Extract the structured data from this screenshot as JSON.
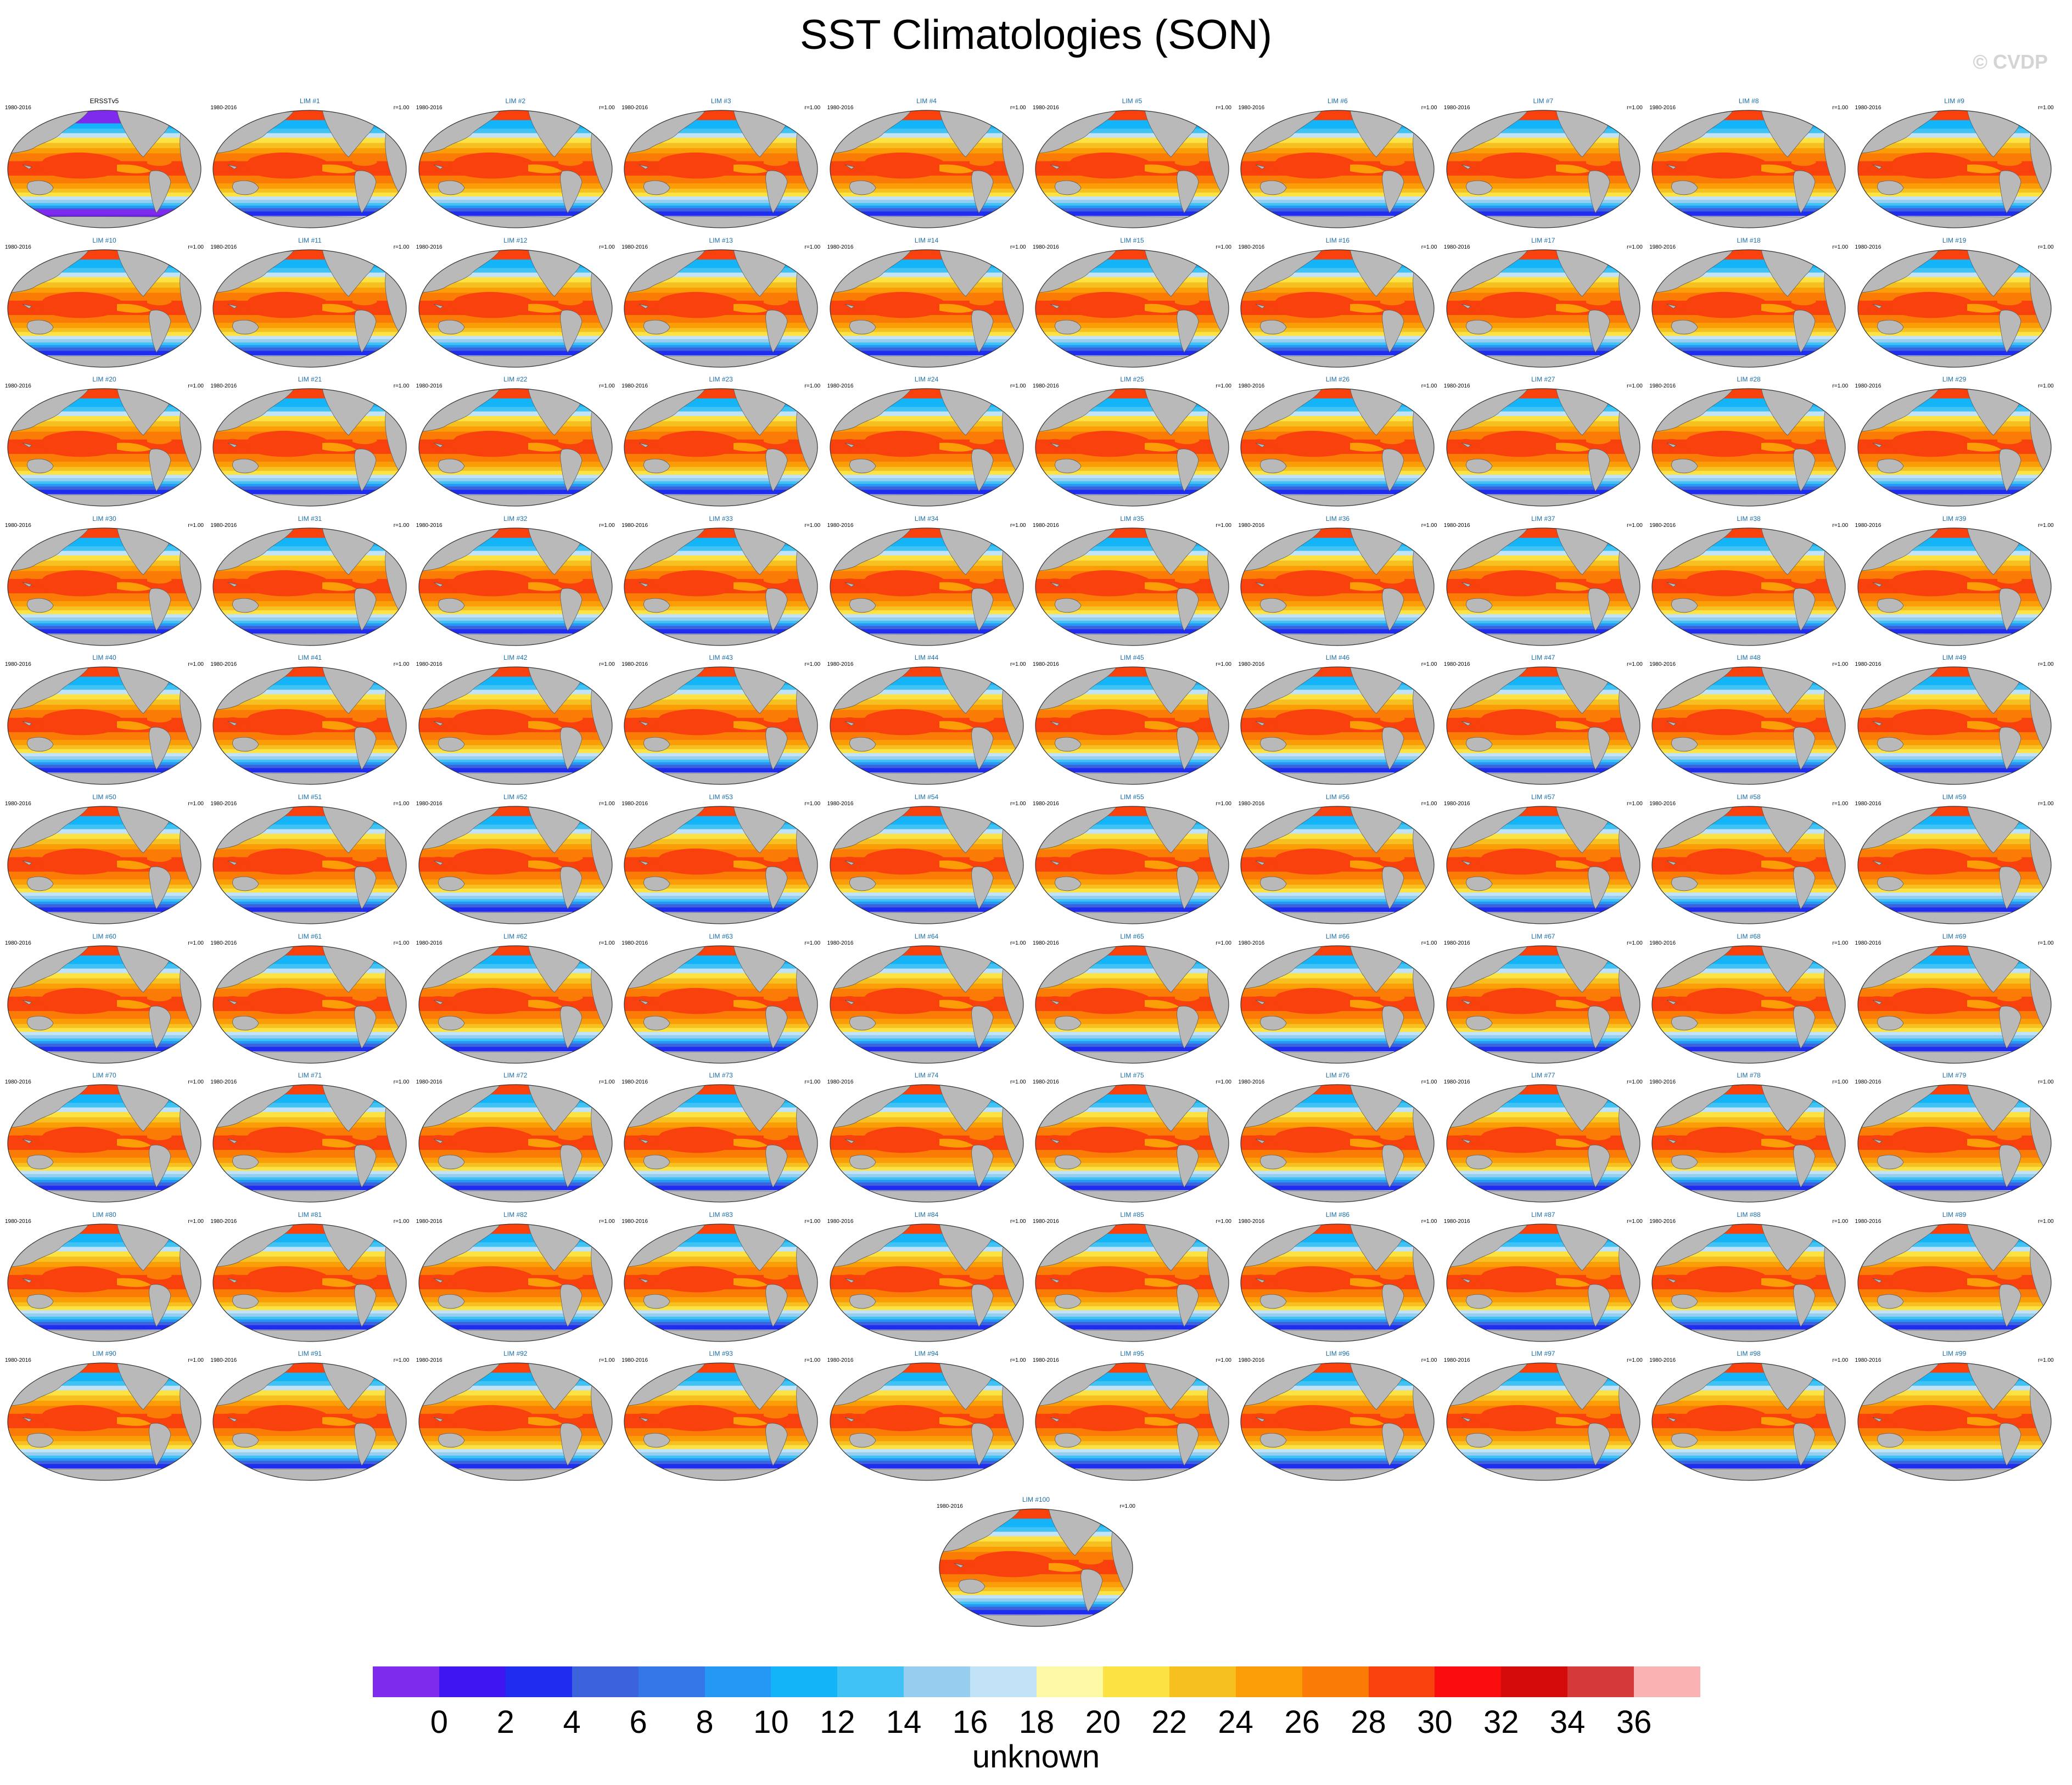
{
  "title": "SST Climatologies (SON)",
  "watermark": "© CVDP",
  "colors": {
    "land": "#b9b9b9",
    "colorbar": [
      "#7f2bee",
      "#3e16ef",
      "#1f2df0",
      "#3c62dc",
      "#3377e8",
      "#2597f5",
      "#14b4f8",
      "#40c3f4",
      "#97cdef",
      "#c2e3f7",
      "#fdf8a4",
      "#fce243",
      "#f7c021",
      "#fa9d06",
      "#fb7b07",
      "#f9410d",
      "#fa0c0f",
      "#d50a0b",
      "#d43a3a",
      "#fbb2b2"
    ]
  },
  "chart_data": {
    "type": "heatmap",
    "description_type": "multi-panel global map climatology",
    "projection": "robinson-like global",
    "panels": [
      {
        "title": "ERSSTv5",
        "left": "1980-2016",
        "right": ""
      },
      {
        "title": "LIM #1",
        "left": "1980-2016",
        "right": "r=1.00"
      },
      {
        "title": "LIM #2",
        "left": "1980-2016",
        "right": "r=1.00"
      },
      {
        "title": "LIM #3",
        "left": "1980-2016",
        "right": "r=1.00"
      },
      {
        "title": "LIM #4",
        "left": "1980-2016",
        "right": "r=1.00"
      },
      {
        "title": "LIM #5",
        "left": "1980-2016",
        "right": "r=1.00"
      },
      {
        "title": "LIM #6",
        "left": "1980-2016",
        "right": "r=1.00"
      },
      {
        "title": "LIM #7",
        "left": "1980-2016",
        "right": "r=1.00"
      },
      {
        "title": "LIM #8",
        "left": "1980-2016",
        "right": "r=1.00"
      },
      {
        "title": "LIM #9",
        "left": "1980-2016",
        "right": "r=1.00"
      },
      {
        "title": "LIM #10",
        "left": "1980-2016",
        "right": "r=1.00"
      },
      {
        "title": "LIM #11",
        "left": "1980-2016",
        "right": "r=1.00"
      },
      {
        "title": "LIM #12",
        "left": "1980-2016",
        "right": "r=1.00"
      },
      {
        "title": "LIM #13",
        "left": "1980-2016",
        "right": "r=1.00"
      },
      {
        "title": "LIM #14",
        "left": "1980-2016",
        "right": "r=1.00"
      },
      {
        "title": "LIM #15",
        "left": "1980-2016",
        "right": "r=1.00"
      },
      {
        "title": "LIM #16",
        "left": "1980-2016",
        "right": "r=1.00"
      },
      {
        "title": "LIM #17",
        "left": "1980-2016",
        "right": "r=1.00"
      },
      {
        "title": "LIM #18",
        "left": "1980-2016",
        "right": "r=1.00"
      },
      {
        "title": "LIM #19",
        "left": "1980-2016",
        "right": "r=1.00"
      },
      {
        "title": "LIM #20",
        "left": "1980-2016",
        "right": "r=1.00"
      },
      {
        "title": "LIM #21",
        "left": "1980-2016",
        "right": "r=1.00"
      },
      {
        "title": "LIM #22",
        "left": "1980-2016",
        "right": "r=1.00"
      },
      {
        "title": "LIM #23",
        "left": "1980-2016",
        "right": "r=1.00"
      },
      {
        "title": "LIM #24",
        "left": "1980-2016",
        "right": "r=1.00"
      },
      {
        "title": "LIM #25",
        "left": "1980-2016",
        "right": "r=1.00"
      },
      {
        "title": "LIM #26",
        "left": "1980-2016",
        "right": "r=1.00"
      },
      {
        "title": "LIM #27",
        "left": "1980-2016",
        "right": "r=1.00"
      },
      {
        "title": "LIM #28",
        "left": "1980-2016",
        "right": "r=1.00"
      },
      {
        "title": "LIM #29",
        "left": "1980-2016",
        "right": "r=1.00"
      },
      {
        "title": "LIM #30",
        "left": "1980-2016",
        "right": "r=1.00"
      },
      {
        "title": "LIM #31",
        "left": "1980-2016",
        "right": "r=1.00"
      },
      {
        "title": "LIM #32",
        "left": "1980-2016",
        "right": "r=1.00"
      },
      {
        "title": "LIM #33",
        "left": "1980-2016",
        "right": "r=1.00"
      },
      {
        "title": "LIM #34",
        "left": "1980-2016",
        "right": "r=1.00"
      },
      {
        "title": "LIM #35",
        "left": "1980-2016",
        "right": "r=1.00"
      },
      {
        "title": "LIM #36",
        "left": "1980-2016",
        "right": "r=1.00"
      },
      {
        "title": "LIM #37",
        "left": "1980-2016",
        "right": "r=1.00"
      },
      {
        "title": "LIM #38",
        "left": "1980-2016",
        "right": "r=1.00"
      },
      {
        "title": "LIM #39",
        "left": "1980-2016",
        "right": "r=1.00"
      },
      {
        "title": "LIM #40",
        "left": "1980-2016",
        "right": "r=1.00"
      },
      {
        "title": "LIM #41",
        "left": "1980-2016",
        "right": "r=1.00"
      },
      {
        "title": "LIM #42",
        "left": "1980-2016",
        "right": "r=1.00"
      },
      {
        "title": "LIM #43",
        "left": "1980-2016",
        "right": "r=1.00"
      },
      {
        "title": "LIM #44",
        "left": "1980-2016",
        "right": "r=1.00"
      },
      {
        "title": "LIM #45",
        "left": "1980-2016",
        "right": "r=1.00"
      },
      {
        "title": "LIM #46",
        "left": "1980-2016",
        "right": "r=1.00"
      },
      {
        "title": "LIM #47",
        "left": "1980-2016",
        "right": "r=1.00"
      },
      {
        "title": "LIM #48",
        "left": "1980-2016",
        "right": "r=1.00"
      },
      {
        "title": "LIM #49",
        "left": "1980-2016",
        "right": "r=1.00"
      },
      {
        "title": "LIM #50",
        "left": "1980-2016",
        "right": "r=1.00"
      },
      {
        "title": "LIM #51",
        "left": "1980-2016",
        "right": "r=1.00"
      },
      {
        "title": "LIM #52",
        "left": "1980-2016",
        "right": "r=1.00"
      },
      {
        "title": "LIM #53",
        "left": "1980-2016",
        "right": "r=1.00"
      },
      {
        "title": "LIM #54",
        "left": "1980-2016",
        "right": "r=1.00"
      },
      {
        "title": "LIM #55",
        "left": "1980-2016",
        "right": "r=1.00"
      },
      {
        "title": "LIM #56",
        "left": "1980-2016",
        "right": "r=1.00"
      },
      {
        "title": "LIM #57",
        "left": "1980-2016",
        "right": "r=1.00"
      },
      {
        "title": "LIM #58",
        "left": "1980-2016",
        "right": "r=1.00"
      },
      {
        "title": "LIM #59",
        "left": "1980-2016",
        "right": "r=1.00"
      },
      {
        "title": "LIM #60",
        "left": "1980-2016",
        "right": "r=1.00"
      },
      {
        "title": "LIM #61",
        "left": "1980-2016",
        "right": "r=1.00"
      },
      {
        "title": "LIM #62",
        "left": "1980-2016",
        "right": "r=1.00"
      },
      {
        "title": "LIM #63",
        "left": "1980-2016",
        "right": "r=1.00"
      },
      {
        "title": "LIM #64",
        "left": "1980-2016",
        "right": "r=1.00"
      },
      {
        "title": "LIM #65",
        "left": "1980-2016",
        "right": "r=1.00"
      },
      {
        "title": "LIM #66",
        "left": "1980-2016",
        "right": "r=1.00"
      },
      {
        "title": "LIM #67",
        "left": "1980-2016",
        "right": "r=1.00"
      },
      {
        "title": "LIM #68",
        "left": "1980-2016",
        "right": "r=1.00"
      },
      {
        "title": "LIM #69",
        "left": "1980-2016",
        "right": "r=1.00"
      },
      {
        "title": "LIM #70",
        "left": "1980-2016",
        "right": "r=1.00"
      },
      {
        "title": "LIM #71",
        "left": "1980-2016",
        "right": "r=1.00"
      },
      {
        "title": "LIM #72",
        "left": "1980-2016",
        "right": "r=1.00"
      },
      {
        "title": "LIM #73",
        "left": "1980-2016",
        "right": "r=1.00"
      },
      {
        "title": "LIM #74",
        "left": "1980-2016",
        "right": "r=1.00"
      },
      {
        "title": "LIM #75",
        "left": "1980-2016",
        "right": "r=1.00"
      },
      {
        "title": "LIM #76",
        "left": "1980-2016",
        "right": "r=1.00"
      },
      {
        "title": "LIM #77",
        "left": "1980-2016",
        "right": "r=1.00"
      },
      {
        "title": "LIM #78",
        "left": "1980-2016",
        "right": "r=1.00"
      },
      {
        "title": "LIM #79",
        "left": "1980-2016",
        "right": "r=1.00"
      },
      {
        "title": "LIM #80",
        "left": "1980-2016",
        "right": "r=1.00"
      },
      {
        "title": "LIM #81",
        "left": "1980-2016",
        "right": "r=1.00"
      },
      {
        "title": "LIM #82",
        "left": "1980-2016",
        "right": "r=1.00"
      },
      {
        "title": "LIM #83",
        "left": "1980-2016",
        "right": "r=1.00"
      },
      {
        "title": "LIM #84",
        "left": "1980-2016",
        "right": "r=1.00"
      },
      {
        "title": "LIM #85",
        "left": "1980-2016",
        "right": "r=1.00"
      },
      {
        "title": "LIM #86",
        "left": "1980-2016",
        "right": "r=1.00"
      },
      {
        "title": "LIM #87",
        "left": "1980-2016",
        "right": "r=1.00"
      },
      {
        "title": "LIM #88",
        "left": "1980-2016",
        "right": "r=1.00"
      },
      {
        "title": "LIM #89",
        "left": "1980-2016",
        "right": "r=1.00"
      },
      {
        "title": "LIM #90",
        "left": "1980-2016",
        "right": "r=1.00"
      },
      {
        "title": "LIM #91",
        "left": "1980-2016",
        "right": "r=1.00"
      },
      {
        "title": "LIM #92",
        "left": "1980-2016",
        "right": "r=1.00"
      },
      {
        "title": "LIM #93",
        "left": "1980-2016",
        "right": "r=1.00"
      },
      {
        "title": "LIM #94",
        "left": "1980-2016",
        "right": "r=1.00"
      },
      {
        "title": "LIM #95",
        "left": "1980-2016",
        "right": "r=1.00"
      },
      {
        "title": "LIM #96",
        "left": "1980-2016",
        "right": "r=1.00"
      },
      {
        "title": "LIM #97",
        "left": "1980-2016",
        "right": "r=1.00"
      },
      {
        "title": "LIM #98",
        "left": "1980-2016",
        "right": "r=1.00"
      },
      {
        "title": "LIM #99",
        "left": "1980-2016",
        "right": "r=1.00"
      },
      {
        "title": "LIM #100",
        "left": "1980-2016",
        "right": "r=1.00"
      }
    ],
    "colorbar": {
      "ticks": [
        "0",
        "2",
        "4",
        "6",
        "8",
        "10",
        "12",
        "14",
        "16",
        "18",
        "20",
        "22",
        "24",
        "26",
        "28",
        "30",
        "32",
        "34",
        "36"
      ],
      "label": "unknown"
    }
  }
}
